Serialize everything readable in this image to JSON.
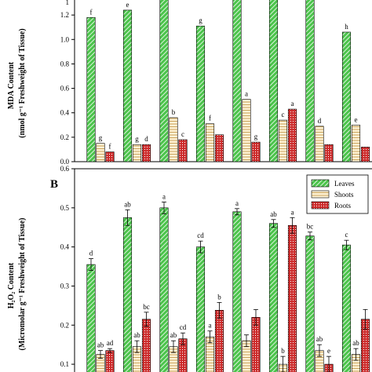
{
  "colors": {
    "leaves": "#4cc44c",
    "leaves_hatch": "#ffffff",
    "shoots": "#fff3d6",
    "shoots_hatch": "#c8a25a",
    "roots": "#cc2a2a",
    "roots_hatch": "#ffffff"
  },
  "chart_data": [
    {
      "type": "bar",
      "panel_label": "",
      "ylabel_line1": "MDA Content",
      "ylabel_line2": "(nmol g⁻¹ Freshweight of Tissue)",
      "ylim": [
        0.0,
        1.4
      ],
      "yticks": [
        0.0,
        0.2,
        0.4,
        0.6,
        0.8,
        1.0,
        1.2
      ],
      "ytick_labels": [
        "0.0",
        "0.2",
        "0.4",
        "0.6",
        "0.8",
        "1.0",
        "1.2"
      ],
      "top_label": "1",
      "series": [
        {
          "key": "leaves",
          "values": [
            1.18,
            1.24,
            1.48,
            1.11,
            1.48,
            1.45,
            1.37,
            1.06
          ],
          "errors": [
            0,
            0,
            0,
            0,
            0,
            0,
            0,
            0
          ],
          "letters": [
            "f",
            "e",
            "",
            "g",
            "",
            "",
            "",
            "h"
          ]
        },
        {
          "key": "shoots",
          "values": [
            0.15,
            0.14,
            0.36,
            0.31,
            0.51,
            0.34,
            0.29,
            0.3
          ],
          "errors": [
            0,
            0,
            0,
            0,
            0,
            0,
            0,
            0
          ],
          "letters": [
            "g",
            "g",
            "b",
            "f",
            "a",
            "c",
            "d",
            "e"
          ]
        },
        {
          "key": "roots",
          "values": [
            0.08,
            0.14,
            0.18,
            0.22,
            0.16,
            0.43,
            0.14,
            0.12
          ],
          "errors": [
            0,
            0,
            0,
            0,
            0,
            0,
            0,
            0
          ],
          "letters": [
            "f",
            "d",
            "c",
            "",
            "g",
            "a",
            "",
            ""
          ]
        }
      ]
    },
    {
      "type": "bar",
      "panel_label": "B",
      "ylabel_line1": "H₂O₂ Content",
      "ylabel_line2": "(Micromolar g⁻¹ Freshweight of Tissue)",
      "ylim": [
        0.05,
        0.6
      ],
      "yticks": [
        0.1,
        0.2,
        0.3,
        0.4,
        0.5,
        0.6
      ],
      "ytick_labels": [
        "0.1",
        "0.2",
        "0.3",
        "0.4",
        "0.5",
        "0.6"
      ],
      "legend_position": "top-right",
      "legend": [
        "Leaves",
        "Shoots",
        "Roots"
      ],
      "series": [
        {
          "key": "leaves",
          "name": "Leaves",
          "values": [
            0.355,
            0.475,
            0.5,
            0.4,
            0.49,
            0.46,
            0.428,
            0.405
          ],
          "errors": [
            0.015,
            0.02,
            0.015,
            0.015,
            0.008,
            0.01,
            0.01,
            0.012
          ],
          "letters": [
            "d",
            "ab",
            "a",
            "cd",
            "a",
            "ab",
            "bc",
            "c"
          ]
        },
        {
          "key": "shoots",
          "name": "Shoots",
          "values": [
            0.125,
            0.145,
            0.145,
            0.17,
            0.16,
            0.1,
            0.135,
            0.125
          ],
          "errors": [
            0.01,
            0.015,
            0.015,
            0.015,
            0.015,
            0.02,
            0.015,
            0.015
          ],
          "letters": [
            "ab",
            "ab",
            "ab",
            "a",
            "",
            "b",
            "ab",
            "ab"
          ]
        },
        {
          "key": "roots",
          "name": "Roots",
          "values": [
            0.135,
            0.215,
            0.165,
            0.238,
            0.22,
            0.455,
            0.1,
            0.215
          ],
          "errors": [
            0.005,
            0.018,
            0.015,
            0.02,
            0.02,
            0.02,
            0.02,
            0.025
          ],
          "letters": [
            "ad",
            "bc",
            "cd",
            "b",
            "",
            "a",
            "e",
            ""
          ]
        }
      ]
    }
  ]
}
